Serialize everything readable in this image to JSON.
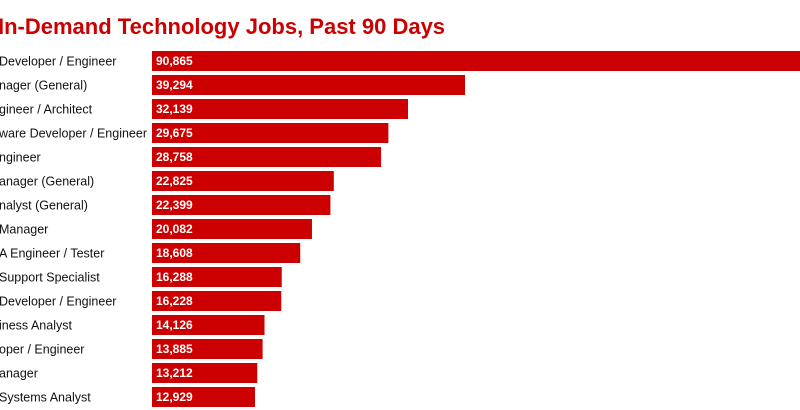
{
  "chart_data": {
    "type": "bar",
    "orientation": "horizontal",
    "title": "In-Demand Technology Jobs, Past 90 Days",
    "color": "#cc0000",
    "categories": [
      "Developer / Engineer",
      "nager (General)",
      "gineer / Architect",
      "ware Developer / Engineer",
      "ngineer",
      "anager (General)",
      "nalyst (General)",
      "Manager",
      "A Engineer / Tester",
      "Support Specialist",
      "Developer / Engineer",
      "iness Analyst",
      "oper / Engineer",
      "anager",
      "Systems Analyst"
    ],
    "values": [
      90865,
      39294,
      32139,
      29675,
      28758,
      22825,
      22399,
      20082,
      18608,
      16288,
      16228,
      14126,
      13885,
      13212,
      12929
    ],
    "value_labels": [
      "90,865",
      "39,294",
      "32,139",
      "29,675",
      "28,758",
      "22,825",
      "22,399",
      "20,082",
      "18,608",
      "16,288",
      "16,228",
      "14,126",
      "13,885",
      "13,212",
      "12,929"
    ]
  }
}
